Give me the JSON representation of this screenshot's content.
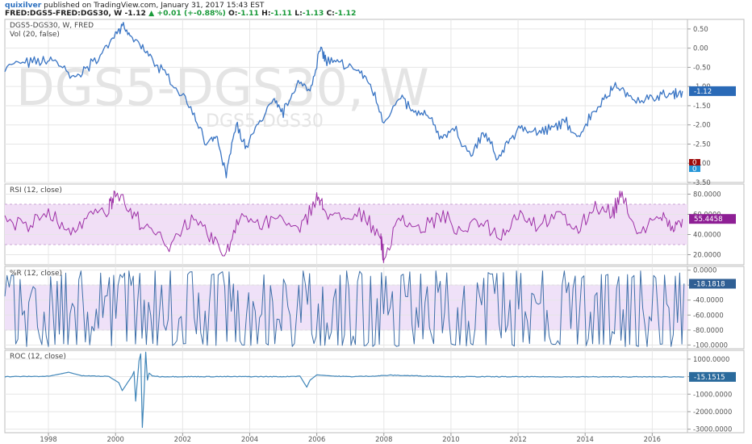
{
  "header": {
    "author": "quixilver",
    "published_text": " published on TradingView.com, January 31, 2017 15:43 EST",
    "symbol": "FRED:DGS5-FRED:DGS30, W",
    "last_value": "-1.12",
    "change_text": "+0.01 (+-0.88%)",
    "o_label": "O:",
    "o_value": "-1.11",
    "h_label": "H:",
    "h_value": "-1.11",
    "l_label": "L:",
    "l_value": "-1.13",
    "c_label": "C:",
    "c_value": "-1.12"
  },
  "colors": {
    "price_line": "#3a75c4",
    "rsi_line": "#9d2fa6",
    "rsi_band": "#f1dff6",
    "wr_line": "#3e6fa8",
    "wr_band": "#efe1f8",
    "roc_line": "#3f85b8",
    "grid": "#e6e6e6",
    "badge_price": "#2a6ab7",
    "badge_rsi": "#8e1f95",
    "badge_wr": "#2f5f94",
    "badge_roc": "#2a6a9c",
    "badge_vol_red": "#9e0b0b",
    "badge_vol_blue": "#2596d8"
  },
  "chart_data": [
    {
      "id": "price",
      "type": "line",
      "title": "DGS5-DGS30, W, FRED",
      "subtitle": "Vol (20, false)",
      "watermark_main": "DGS5-DGS30, W",
      "watermark_sub": "DGS5-DGS30",
      "ylim": [
        -3.5,
        0.75
      ],
      "yticks": [
        "0.50",
        "0.00",
        "-0.50",
        "-1.00",
        "-1.50",
        "-2.00",
        "-2.50",
        "-3.00",
        "-3.50"
      ],
      "last_value_label": "-1.12",
      "vol_badges": [
        "0",
        "0"
      ],
      "x": [
        1996.7,
        1997.3,
        1997.8,
        1998.2,
        1998.7,
        1999.1,
        1999.6,
        2000.0,
        2000.2,
        2000.5,
        2000.9,
        2001.3,
        2001.8,
        2002.3,
        2002.7,
        2003.0,
        2003.3,
        2003.6,
        2003.9,
        2004.3,
        2004.7,
        2005.0,
        2005.4,
        2005.8,
        2006.1,
        2006.3,
        2006.7,
        2007.2,
        2007.6,
        2008.0,
        2008.5,
        2008.9,
        2009.3,
        2009.7,
        2010.1,
        2010.6,
        2011.0,
        2011.4,
        2011.8,
        2012.2,
        2012.6,
        2013.0,
        2013.4,
        2013.8,
        2014.2,
        2014.6,
        2014.9,
        2015.3,
        2015.8,
        2016.2,
        2016.6,
        2016.9
      ],
      "values": [
        -0.45,
        -0.4,
        -0.35,
        -0.3,
        -0.8,
        -0.55,
        -0.15,
        0.45,
        0.55,
        0.25,
        -0.1,
        -0.5,
        -1.0,
        -1.6,
        -2.5,
        -2.3,
        -3.3,
        -2.0,
        -2.6,
        -1.9,
        -1.4,
        -1.7,
        -0.9,
        -1.1,
        0.0,
        -0.35,
        -0.4,
        -0.55,
        -0.95,
        -1.9,
        -1.3,
        -1.7,
        -1.75,
        -2.3,
        -2.1,
        -2.8,
        -2.2,
        -2.9,
        -2.3,
        -2.05,
        -2.2,
        -2.1,
        -1.9,
        -2.3,
        -1.7,
        -1.3,
        -0.95,
        -1.25,
        -1.35,
        -1.25,
        -1.2,
        -1.12
      ]
    },
    {
      "id": "rsi",
      "type": "line",
      "title": "RSI (12, close)",
      "ylim": [
        10,
        90
      ],
      "band": [
        30,
        70
      ],
      "yticks": [
        "80.0000",
        "60.0000",
        "40.0000",
        "20.0000"
      ],
      "last_value_label": "55.4458",
      "x": [
        1996.7,
        1997.4,
        1998.0,
        1998.6,
        1999.2,
        1999.8,
        2000.0,
        2000.5,
        2001.0,
        2001.6,
        2002.2,
        2002.8,
        2003.3,
        2003.7,
        2004.3,
        2004.9,
        2005.5,
        2006.0,
        2006.2,
        2006.8,
        2007.4,
        2007.9,
        2008.0,
        2008.5,
        2009.1,
        2009.7,
        2010.3,
        2010.9,
        2011.5,
        2012.0,
        2012.6,
        2013.2,
        2013.8,
        2014.3,
        2014.8,
        2015.1,
        2015.6,
        2016.2,
        2016.6,
        2016.9
      ],
      "values": [
        55,
        48,
        62,
        40,
        58,
        66,
        85,
        60,
        45,
        30,
        55,
        38,
        20,
        62,
        48,
        58,
        42,
        78,
        66,
        52,
        60,
        40,
        15,
        58,
        45,
        60,
        42,
        55,
        38,
        62,
        50,
        60,
        44,
        70,
        60,
        80,
        40,
        60,
        45,
        55.4
      ]
    },
    {
      "id": "williams_r",
      "type": "line",
      "title": "%R (12, close)",
      "ylim": [
        -105,
        5
      ],
      "band": [
        -80,
        -20
      ],
      "yticks": [
        "0.0000",
        "-20.0000",
        "-40.0000",
        "-60.0000",
        "-80.0000",
        "-100.0000"
      ],
      "last_value_label": "-18.1818",
      "x_start": 1996.7,
      "x_end": 2016.95,
      "values": [
        -35,
        -60,
        -90,
        -15,
        -50,
        -75,
        -10,
        -95,
        -40,
        -20,
        -65,
        -85,
        -5,
        -55,
        -30,
        -98,
        -12,
        -70,
        -45,
        -25,
        -88,
        -8,
        -60,
        -35,
        -92,
        -15,
        -50,
        -78,
        -5,
        -40,
        -68,
        -95,
        -20,
        -55,
        -30,
        -85,
        -10,
        -62,
        -45,
        -18
      ]
    },
    {
      "id": "roc",
      "type": "line",
      "title": "ROC (12, close)",
      "ylim": [
        -3200,
        1500
      ],
      "yticks": [
        "1000.0000",
        "0.0000",
        "-1000.0000",
        "-2000.0000",
        "-3000.0000"
      ],
      "last_value_label": "-15.1515",
      "x": [
        1996.7,
        1998.0,
        1998.6,
        1999.0,
        1999.8,
        2000.1,
        2000.2,
        2000.5,
        2000.55,
        2000.6,
        2000.7,
        2000.75,
        2000.8,
        2000.85,
        2000.9,
        2000.95,
        2001.0,
        2001.1,
        2001.3,
        2003.0,
        2005.0,
        2005.5,
        2005.7,
        2005.8,
        2006.0,
        2006.5,
        2007.0,
        2007.8,
        2008.2,
        2010.0,
        2013.0,
        2016.95
      ],
      "values": [
        0,
        20,
        250,
        50,
        10,
        -350,
        -800,
        60,
        300,
        -1400,
        900,
        1300,
        -2900,
        -1000,
        1400,
        -200,
        200,
        50,
        0,
        0,
        0,
        30,
        -600,
        -200,
        100,
        30,
        0,
        40,
        80,
        0,
        -10,
        -15
      ]
    }
  ],
  "x_axis": {
    "range": [
      1996.7,
      2017.05
    ],
    "ticks": [
      "1998",
      "2000",
      "2002",
      "2004",
      "2006",
      "2008",
      "2010",
      "2012",
      "2014",
      "2016"
    ]
  }
}
